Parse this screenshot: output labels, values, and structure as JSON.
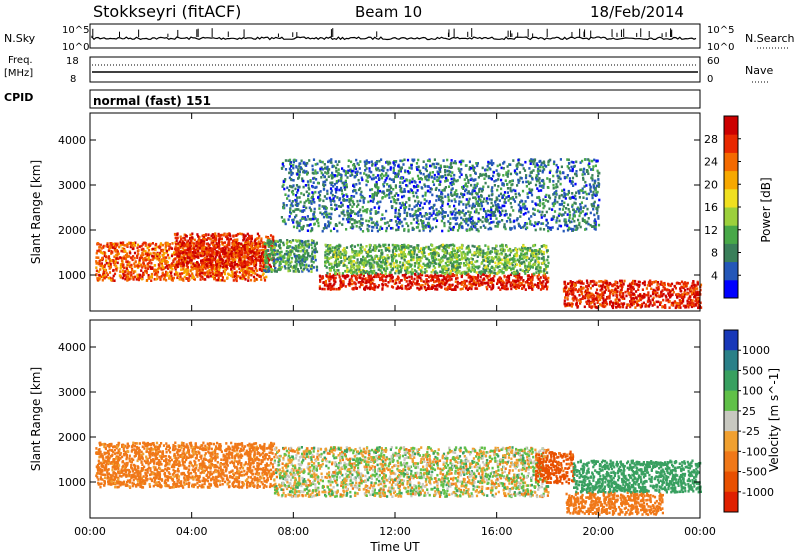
{
  "header": {
    "station": "Stokkseyri (fitACF)",
    "beam": "Beam 10",
    "date": "18/Feb/2014"
  },
  "nsky_panel": {
    "label": "N.Sky",
    "left_ticks": [
      "10^5",
      "10^0"
    ],
    "right_ticks": [
      "10^5",
      "10^0"
    ],
    "right_label": "N.Search"
  },
  "freq_panel": {
    "label_top": "Freq.",
    "label_unit": "[MHz]",
    "left_ticks": [
      "18",
      "8"
    ],
    "right_ticks": [
      "60",
      "0"
    ],
    "right_label": "Nave"
  },
  "cpid_panel": {
    "label": "CPID",
    "mode": "normal (fast) 151"
  },
  "x_axis": {
    "label": "Time UT",
    "ticks": [
      "00:00",
      "04:00",
      "08:00",
      "12:00",
      "16:00",
      "20:00",
      "00:00"
    ]
  },
  "chart_data": [
    {
      "type": "heatmap",
      "panel": "power",
      "ylabel": "Slant Range [km]",
      "yticks": [
        1000,
        2000,
        3000,
        4000
      ],
      "ylim": [
        200,
        4600
      ],
      "xlim_hours": [
        0,
        24
      ],
      "colorbar": {
        "label": "Power [dB]",
        "ticks": [
          4,
          8,
          12,
          16,
          20,
          24,
          28
        ],
        "range": [
          0,
          32
        ],
        "colors": [
          "#0000ff",
          "#2457b8",
          "#3a7f5a",
          "#48a848",
          "#9cd03c",
          "#f0e020",
          "#f7a800",
          "#f46a00",
          "#e82800",
          "#cc0000"
        ]
      },
      "regions": [
        {
          "t0": 0.2,
          "t1": 6.9,
          "r0": 900,
          "r1": 1750,
          "level": 25
        },
        {
          "t0": 3.3,
          "t1": 7.2,
          "r0": 1200,
          "r1": 1950,
          "level": 28
        },
        {
          "t0": 6.8,
          "t1": 8.9,
          "r0": 1100,
          "r1": 1800,
          "level": 10
        },
        {
          "t0": 9.0,
          "t1": 18.0,
          "r0": 700,
          "r1": 1050,
          "level": 29
        },
        {
          "t0": 9.2,
          "t1": 18.0,
          "r0": 1050,
          "r1": 1700,
          "level": 12
        },
        {
          "t0": 18.6,
          "t1": 24.0,
          "r0": 300,
          "r1": 900,
          "level": 28
        },
        {
          "t0": 7.5,
          "t1": 20.0,
          "r0": 2000,
          "r1": 3600,
          "level": 7
        }
      ]
    },
    {
      "type": "heatmap",
      "panel": "velocity",
      "ylabel": "Slant Range [km]",
      "yticks": [
        1000,
        2000,
        3000,
        4000
      ],
      "ylim": [
        200,
        4600
      ],
      "xlim_hours": [
        0,
        24
      ],
      "colorbar": {
        "label": "Velocity [m s^-1]",
        "ticks": [
          "1000",
          "500",
          "100",
          "25",
          "-25",
          "-100",
          "-500",
          "-1000"
        ],
        "colors": [
          "#1838b8",
          "#2a8088",
          "#38a060",
          "#60c048",
          "#c8c8c0",
          "#f0a030",
          "#f07818",
          "#e85000",
          "#e02000"
        ]
      },
      "regions": [
        {
          "t0": 0.2,
          "t1": 7.2,
          "r0": 900,
          "r1": 1900,
          "value": -200
        },
        {
          "t0": 7.2,
          "t1": 18.0,
          "r0": 700,
          "r1": 1800,
          "value": 0
        },
        {
          "t0": 17.5,
          "t1": 19.0,
          "r0": 1000,
          "r1": 1700,
          "value": -600
        },
        {
          "t0": 18.7,
          "t1": 22.5,
          "r0": 300,
          "r1": 800,
          "value": -300
        },
        {
          "t0": 19.0,
          "t1": 24.0,
          "r0": 800,
          "r1": 1500,
          "value": 300
        }
      ]
    }
  ]
}
